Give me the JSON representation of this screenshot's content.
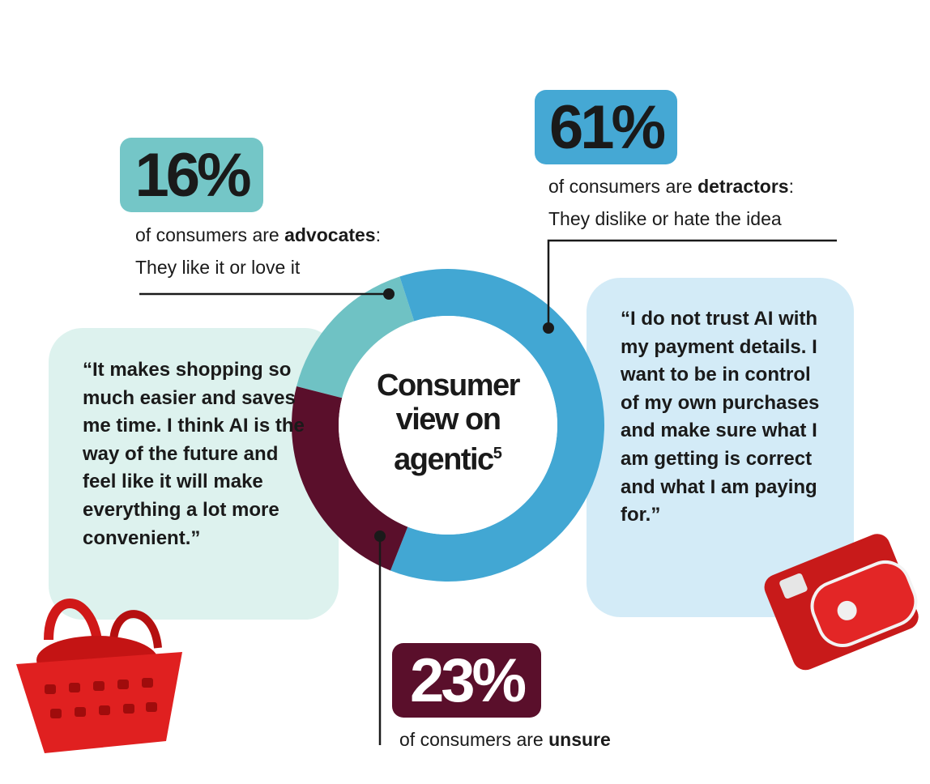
{
  "chart_data": {
    "type": "donut",
    "title": "Consumer view on agentic",
    "title_note": "5",
    "categories": [
      "advocates",
      "detractors",
      "unsure"
    ],
    "values": [
      16,
      61,
      23
    ],
    "value_labels": [
      "16%",
      "61%",
      "23%"
    ],
    "colors": [
      "#6fc2c4",
      "#42a7d3",
      "#5a0f2b"
    ],
    "captions": [
      {
        "lead": "of consumers are ",
        "tail": ":",
        "line2": "They like it or love it"
      },
      {
        "lead": "of consumers are ",
        "tail": ":",
        "line2": "They dislike or hate the idea"
      },
      {
        "lead": "of consumers are "
      }
    ],
    "quotes": [
      "“It makes shopping so much easier and saves me time. I think AI is the way of the future and feel like it will make everything a lot more convenient.”",
      "“I do not trust AI with my payment details. I want to be in control of my own purchases and make sure what I am getting is correct and what I am paying for.”"
    ]
  }
}
